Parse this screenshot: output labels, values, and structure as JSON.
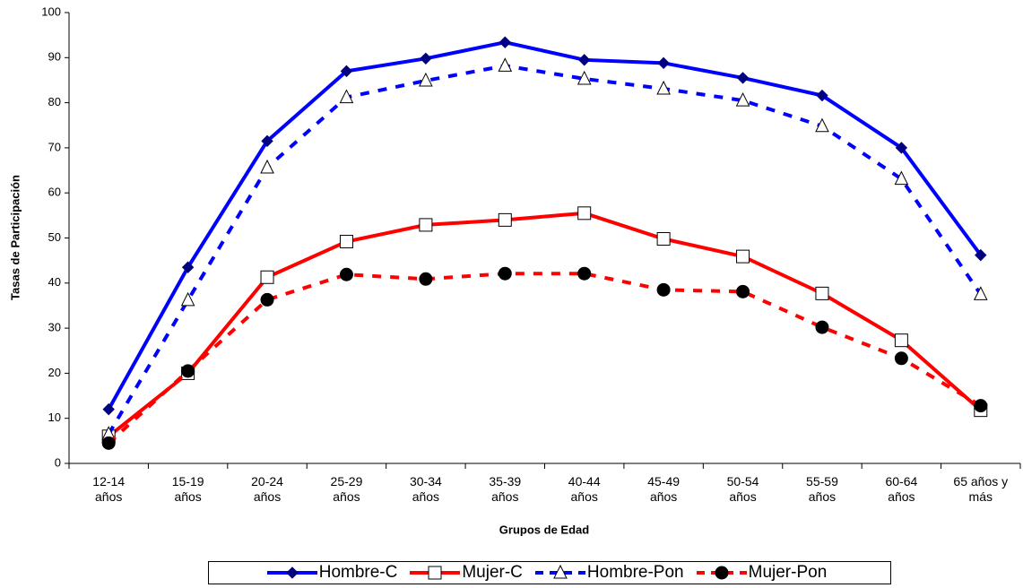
{
  "chart_data": {
    "type": "line",
    "xlabel": "Grupos de Edad",
    "ylabel": "Tasas de Participación",
    "categories": [
      "12-14 años",
      "15-19 años",
      "20-24 años",
      "25-29 años",
      "30-34 años",
      "35-39 años",
      "40-44 años",
      "45-49 años",
      "50-54 años",
      "55-59 años",
      "60-64 años",
      "65 años y más"
    ],
    "ylim": [
      0,
      100
    ],
    "yticks": [
      0,
      10,
      20,
      30,
      40,
      50,
      60,
      70,
      80,
      90,
      100
    ],
    "grid": false,
    "legend": "bottom",
    "series": [
      {
        "name": "Hombre-C",
        "color": "#0000ff",
        "dashed": false,
        "marker": "diamond",
        "marker_color": "#000080",
        "values": [
          12,
          43.5,
          71.5,
          87,
          89.8,
          93.4,
          89.5,
          88.8,
          85.5,
          81.6,
          70,
          46.2
        ]
      },
      {
        "name": "Mujer-C",
        "color": "#ff0000",
        "dashed": false,
        "marker": "square",
        "marker_color": "#ffffff",
        "values": [
          6,
          20,
          41.3,
          49.2,
          52.9,
          54,
          55.5,
          49.8,
          45.9,
          37.7,
          27.3,
          11.8
        ]
      },
      {
        "name": "Hombre-Pon",
        "color": "#0000ff",
        "dashed": true,
        "marker": "triangle",
        "marker_color": "#ffffff",
        "values": [
          6.5,
          36.2,
          65.6,
          81.2,
          84.9,
          88.2,
          85.3,
          83.1,
          80.5,
          74.8,
          63.1,
          37.5
        ]
      },
      {
        "name": "Mujer-Pon",
        "color": "#ff0000",
        "dashed": true,
        "marker": "circle",
        "marker_color": "#000000",
        "values": [
          4.5,
          20.5,
          36.3,
          41.9,
          40.9,
          42.1,
          42.1,
          38.5,
          38.1,
          30.2,
          23.3,
          12.8
        ]
      }
    ]
  }
}
